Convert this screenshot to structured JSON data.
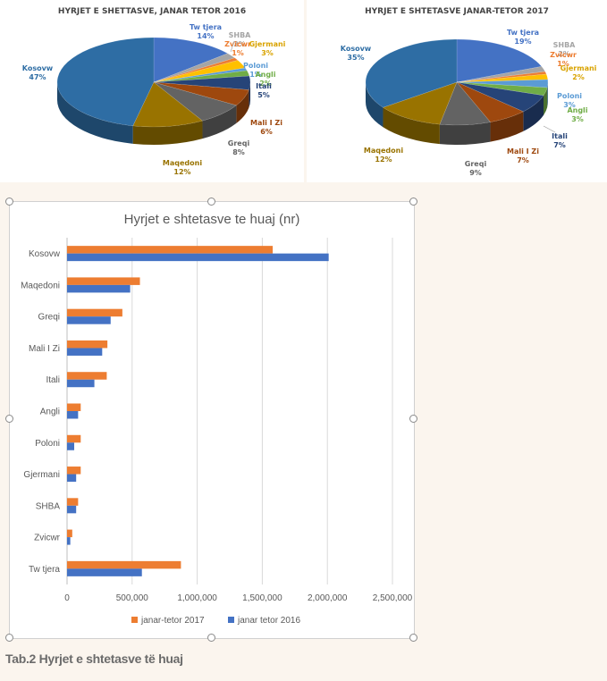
{
  "chart_data": [
    {
      "type": "pie",
      "title": "HYRJET E SHETTASVE, JANAR TETOR 2016",
      "slices": [
        {
          "label": "Tw tjera",
          "pct": "14%",
          "value": 14,
          "color": "#4472c4"
        },
        {
          "label": "SHBA",
          "pct": "2%",
          "value": 2,
          "color": "#a5a5a5"
        },
        {
          "label": "Zvicwr",
          "pct": "1%",
          "value": 1,
          "color": "#ed7d31"
        },
        {
          "label": "Gjermani",
          "pct": "3%",
          "value": 3,
          "color": "#ffc000"
        },
        {
          "label": "Poloni",
          "pct": "1%",
          "value": 1,
          "color": "#5b9bd5"
        },
        {
          "label": "Angli",
          "pct": "2%",
          "value": 2,
          "color": "#70ad47"
        },
        {
          "label": "Itali",
          "pct": "5%",
          "value": 5,
          "color": "#264478"
        },
        {
          "label": "Mali I Zi",
          "pct": "6%",
          "value": 6,
          "color": "#9e480e"
        },
        {
          "label": "Greqi",
          "pct": "8%",
          "value": 8,
          "color": "#636363"
        },
        {
          "label": "Maqedoni",
          "pct": "12%",
          "value": 12,
          "color": "#997300"
        },
        {
          "label": "Kosovw",
          "pct": "47%",
          "value": 47,
          "color": "#2e6da4"
        }
      ]
    },
    {
      "type": "pie",
      "title": "HYRJET E SHTETASVE JANAR-TETOR 2017",
      "slices": [
        {
          "label": "Tw tjera",
          "pct": "19%",
          "value": 19,
          "color": "#4472c4"
        },
        {
          "label": "SHBA",
          "pct": "2%",
          "value": 2,
          "color": "#a5a5a5"
        },
        {
          "label": "Zvicwr",
          "pct": "1%",
          "value": 1,
          "color": "#ed7d31"
        },
        {
          "label": "Gjermani",
          "pct": "2%",
          "value": 2,
          "color": "#ffc000"
        },
        {
          "label": "Poloni",
          "pct": "3%",
          "value": 3,
          "color": "#5b9bd5"
        },
        {
          "label": "Angli",
          "pct": "3%",
          "value": 3,
          "color": "#70ad47"
        },
        {
          "label": "Itali",
          "pct": "7%",
          "value": 7,
          "color": "#264478"
        },
        {
          "label": "Mali I Zi",
          "pct": "7%",
          "value": 7,
          "color": "#9e480e"
        },
        {
          "label": "Greqi",
          "pct": "9%",
          "value": 9,
          "color": "#636363"
        },
        {
          "label": "Maqedoni",
          "pct": "12%",
          "value": 12,
          "color": "#997300"
        },
        {
          "label": "Kosovw",
          "pct": "35%",
          "value": 35,
          "color": "#2e6da4"
        }
      ]
    },
    {
      "type": "bar",
      "orientation": "horizontal",
      "title": "Hyrjet e shtetasve te huaj (nr)",
      "categories": [
        "Kosovw",
        "Maqedoni",
        "Greqi",
        "Mali I Zi",
        "Itali",
        "Angli",
        "Poloni",
        "Gjermani",
        "SHBA",
        "Zvicwr",
        "Tw tjera"
      ],
      "series": [
        {
          "name": "janar-tetor 2017",
          "color": "#ed7d31",
          "values": [
            1580000,
            560000,
            425000,
            310000,
            305000,
            105000,
            105000,
            105000,
            85000,
            40000,
            875000
          ]
        },
        {
          "name": "janar tetor 2016",
          "color": "#4472c4",
          "values": [
            2010000,
            485000,
            335000,
            270000,
            210000,
            85000,
            55000,
            70000,
            70000,
            25000,
            575000
          ]
        }
      ],
      "xlim": [
        0,
        2500000
      ],
      "xticks": [
        "0",
        "500,000",
        "1,000,000",
        "1,500,000",
        "2,000,000",
        "2,500,000"
      ],
      "legend_position": "bottom",
      "grid": true
    }
  ],
  "caption": "Tab.2 Hyrjet e shtetasve të huaj"
}
